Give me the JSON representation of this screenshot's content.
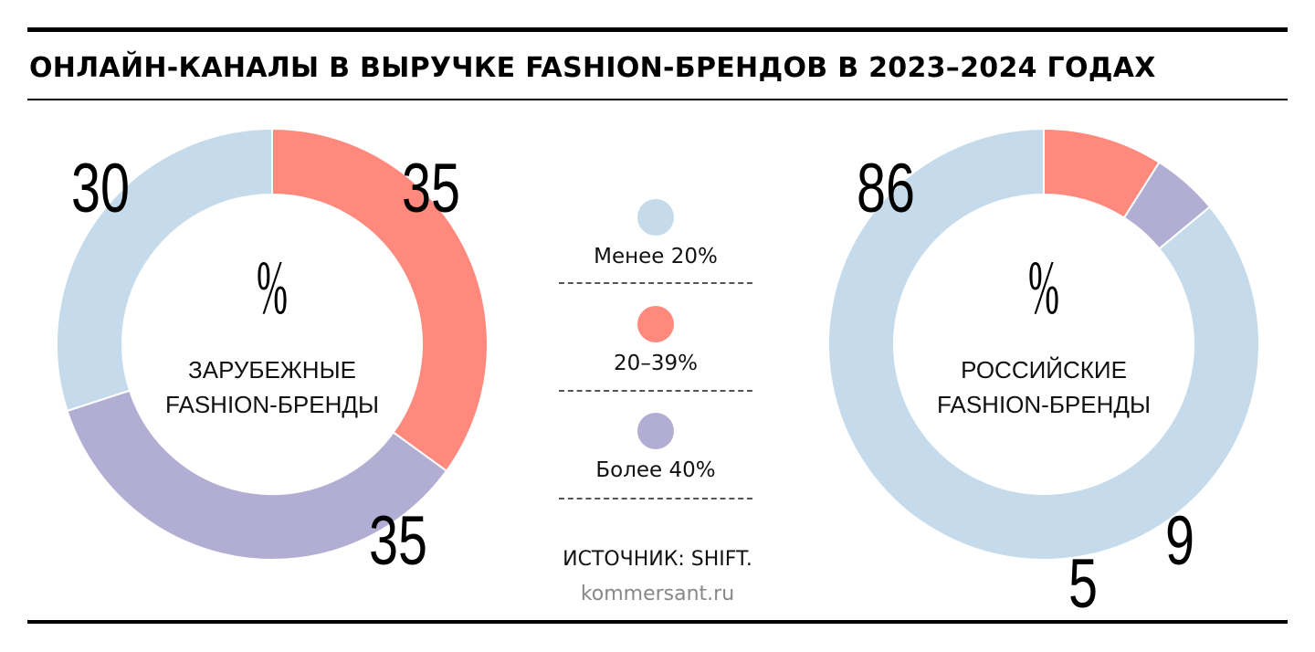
{
  "title": "ОНЛАЙН-КАНАЛЫ В ВЫРУЧКЕ FASHION-БРЕНДОВ В 2023–2024 ГОДАХ",
  "legend": [
    {
      "label": "Менее 20%",
      "color": "#c5dbeb"
    },
    {
      "label": "20–39%",
      "color": "#fe897c"
    },
    {
      "label": "Более 40%",
      "color": "#b2aed3"
    }
  ],
  "source": "ИСТОЧНИК: SHIFT.",
  "site": "kommersant.ru",
  "chart_data": [
    {
      "type": "pie",
      "unit": "%",
      "center_label_lines": [
        "ЗАРУБЕЖНЫЕ",
        "FASHION-БРЕНДЫ"
      ],
      "categories": [
        "Менее 20%",
        "20–39%",
        "Более 40%"
      ],
      "values": [
        30,
        35,
        35
      ],
      "colors": [
        "#c5dbeb",
        "#fe897c",
        "#b2aed3"
      ]
    },
    {
      "type": "pie",
      "unit": "%",
      "center_label_lines": [
        "РОССИЙСКИЕ",
        "FASHION-БРЕНДЫ"
      ],
      "categories": [
        "Менее 20%",
        "20–39%",
        "Более 40%"
      ],
      "values": [
        86,
        9,
        5
      ],
      "colors": [
        "#c5dbeb",
        "#fe897c",
        "#b2aed3"
      ]
    }
  ]
}
